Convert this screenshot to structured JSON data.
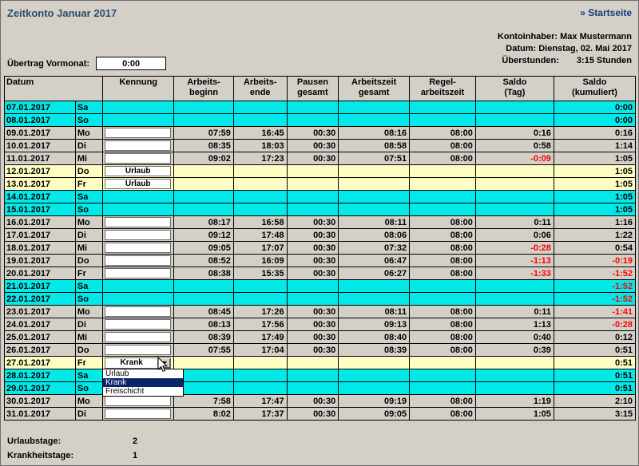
{
  "page": {
    "title": "Zeitkonto Januar 2017",
    "home_link": "» Startseite"
  },
  "account": {
    "holder_label": "Kontoinhaber:",
    "holder_value": "Max Mustermann",
    "date_label": "Datum:",
    "date_value": "Dienstag, 02. Mai 2017",
    "overtime_label": "Überstunden:",
    "overtime_value": "3:15 Stunden"
  },
  "carryover": {
    "label": "Übertrag Vormonat:",
    "value": "0:00"
  },
  "table": {
    "headers": {
      "datum": "Datum",
      "kennung": "Kennung",
      "beginn": "Arbeits-\nbeginn",
      "ende": "Arbeits-\nende",
      "pausen": "Pausen\ngesamt",
      "arbeitszeit": "Arbeitszeit\ngesamt",
      "regel": "Regel-\narbeitszeit",
      "saldo_tag": "Saldo\n(Tag)",
      "saldo_kum": "Saldo\n(kumuliert)"
    },
    "rows": [
      {
        "date": "07.01.2017",
        "day": "Sa",
        "type": "weekend",
        "kennung": "",
        "begin": "",
        "end": "",
        "pause": "",
        "work": "",
        "regel": "",
        "tag": "",
        "kum": "0:00"
      },
      {
        "date": "08.01.2017",
        "day": "So",
        "type": "weekend",
        "kennung": "",
        "begin": "",
        "end": "",
        "pause": "",
        "work": "",
        "regel": "",
        "tag": "",
        "kum": "0:00"
      },
      {
        "date": "09.01.2017",
        "day": "Mo",
        "type": "work",
        "kennung": "",
        "begin": "07:59",
        "end": "16:45",
        "pause": "00:30",
        "work": "08:16",
        "regel": "08:00",
        "tag": "0:16",
        "kum": "0:16"
      },
      {
        "date": "10.01.2017",
        "day": "Di",
        "type": "work",
        "kennung": "",
        "begin": "08:35",
        "end": "18:03",
        "pause": "00:30",
        "work": "08:58",
        "regel": "08:00",
        "tag": "0:58",
        "kum": "1:14"
      },
      {
        "date": "11.01.2017",
        "day": "Mi",
        "type": "work",
        "kennung": "",
        "begin": "09:02",
        "end": "17:23",
        "pause": "00:30",
        "work": "07:51",
        "regel": "08:00",
        "tag": "-0:09",
        "kum": "1:05"
      },
      {
        "date": "12.01.2017",
        "day": "Do",
        "type": "vacation",
        "kennung": "Urlaub",
        "begin": "",
        "end": "",
        "pause": "",
        "work": "",
        "regel": "",
        "tag": "",
        "kum": "1:05"
      },
      {
        "date": "13.01.2017",
        "day": "Fr",
        "type": "vacation",
        "kennung": "Urlaub",
        "begin": "",
        "end": "",
        "pause": "",
        "work": "",
        "regel": "",
        "tag": "",
        "kum": "1:05"
      },
      {
        "date": "14.01.2017",
        "day": "Sa",
        "type": "weekend",
        "kennung": "",
        "begin": "",
        "end": "",
        "pause": "",
        "work": "",
        "regel": "",
        "tag": "",
        "kum": "1:05"
      },
      {
        "date": "15.01.2017",
        "day": "So",
        "type": "weekend",
        "kennung": "",
        "begin": "",
        "end": "",
        "pause": "",
        "work": "",
        "regel": "",
        "tag": "",
        "kum": "1:05"
      },
      {
        "date": "16.01.2017",
        "day": "Mo",
        "type": "work",
        "kennung": "",
        "begin": "08:17",
        "end": "16:58",
        "pause": "00:30",
        "work": "08:11",
        "regel": "08:00",
        "tag": "0:11",
        "kum": "1:16"
      },
      {
        "date": "17.01.2017",
        "day": "Di",
        "type": "work",
        "kennung": "",
        "begin": "09:12",
        "end": "17:48",
        "pause": "00:30",
        "work": "08:06",
        "regel": "08:00",
        "tag": "0:06",
        "kum": "1:22"
      },
      {
        "date": "18.01.2017",
        "day": "Mi",
        "type": "work",
        "kennung": "",
        "begin": "09:05",
        "end": "17:07",
        "pause": "00:30",
        "work": "07:32",
        "regel": "08:00",
        "tag": "-0:28",
        "kum": "0:54"
      },
      {
        "date": "19.01.2017",
        "day": "Do",
        "type": "work",
        "kennung": "",
        "begin": "08:52",
        "end": "16:09",
        "pause": "00:30",
        "work": "06:47",
        "regel": "08:00",
        "tag": "-1:13",
        "kum": "-0:19"
      },
      {
        "date": "20.01.2017",
        "day": "Fr",
        "type": "work",
        "kennung": "",
        "begin": "08:38",
        "end": "15:35",
        "pause": "00:30",
        "work": "06:27",
        "regel": "08:00",
        "tag": "-1:33",
        "kum": "-1:52"
      },
      {
        "date": "21.01.2017",
        "day": "Sa",
        "type": "weekend",
        "kennung": "",
        "begin": "",
        "end": "",
        "pause": "",
        "work": "",
        "regel": "",
        "tag": "",
        "kum": "-1:52"
      },
      {
        "date": "22.01.2017",
        "day": "So",
        "type": "weekend",
        "kennung": "",
        "begin": "",
        "end": "",
        "pause": "",
        "work": "",
        "regel": "",
        "tag": "",
        "kum": "-1:52"
      },
      {
        "date": "23.01.2017",
        "day": "Mo",
        "type": "work",
        "kennung": "",
        "begin": "08:45",
        "end": "17:26",
        "pause": "00:30",
        "work": "08:11",
        "regel": "08:00",
        "tag": "0:11",
        "kum": "-1:41"
      },
      {
        "date": "24.01.2017",
        "day": "Di",
        "type": "work",
        "kennung": "",
        "begin": "08:13",
        "end": "17:56",
        "pause": "00:30",
        "work": "09:13",
        "regel": "08:00",
        "tag": "1:13",
        "kum": "-0:28"
      },
      {
        "date": "25.01.2017",
        "day": "Mi",
        "type": "work",
        "kennung": "",
        "begin": "08:39",
        "end": "17:49",
        "pause": "00:30",
        "work": "08:40",
        "regel": "08:00",
        "tag": "0:40",
        "kum": "0:12"
      },
      {
        "date": "26.01.2017",
        "day": "Do",
        "type": "work",
        "kennung": "",
        "begin": "07:55",
        "end": "17:04",
        "pause": "00:30",
        "work": "08:39",
        "regel": "08:00",
        "tag": "0:39",
        "kum": "0:51"
      },
      {
        "date": "27.01.2017",
        "day": "Fr",
        "type": "sick",
        "kennung": "Krank",
        "dropdown_open": true,
        "begin": "",
        "end": "",
        "pause": "",
        "work": "",
        "regel": "",
        "tag": "",
        "kum": "0:51"
      },
      {
        "date": "28.01.2017",
        "day": "Sa",
        "type": "weekend",
        "kennung": "",
        "begin": "",
        "end": "",
        "pause": "",
        "work": "",
        "regel": "",
        "tag": "",
        "kum": "0:51"
      },
      {
        "date": "29.01.2017",
        "day": "So",
        "type": "weekend",
        "kennung": "",
        "begin": "",
        "end": "",
        "pause": "",
        "work": "",
        "regel": "",
        "tag": "",
        "kum": "0:51"
      },
      {
        "date": "30.01.2017",
        "day": "Mo",
        "type": "work",
        "kennung": "",
        "begin": "7:58",
        "end": "17:47",
        "pause": "00:30",
        "work": "09:19",
        "regel": "08:00",
        "tag": "1:19",
        "kum": "2:10"
      },
      {
        "date": "31.01.2017",
        "day": "Di",
        "type": "work",
        "kennung": "",
        "begin": "8:02",
        "end": "17:37",
        "pause": "00:30",
        "work": "09:05",
        "regel": "08:00",
        "tag": "1:05",
        "kum": "3:15"
      }
    ]
  },
  "dropdown": {
    "value": "Krank",
    "options": [
      "Urlaub",
      "Krank",
      "Freischicht"
    ],
    "selected_index": 1
  },
  "summary": {
    "vacation_label": "Urlaubstage:",
    "vacation_value": "2",
    "sick_label": "Krankheitstage:",
    "sick_value": "1"
  },
  "colors": {
    "page_bg": "#D4D0C8",
    "weekend_row": "#00E9E9",
    "special_row": "#FFFFC4",
    "negative_text": "#FF0000",
    "selection": "#0A246A",
    "title_text": "#2A4E68",
    "link_text": "#16397E"
  }
}
